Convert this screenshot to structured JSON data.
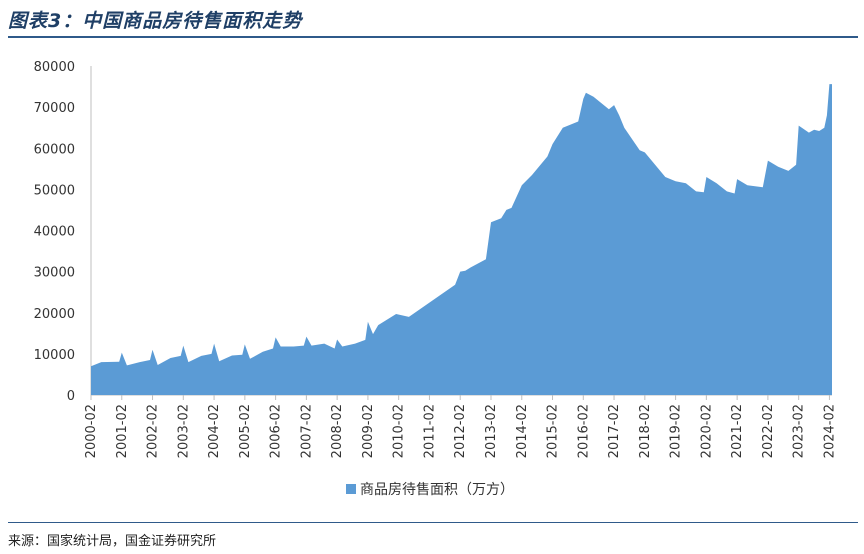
{
  "header": {
    "title": "图表3：中国商品房待售面积走势"
  },
  "footer": {
    "source": "来源：国家统计局，国金证券研究所"
  },
  "chart_data": {
    "type": "area",
    "color": "#5b9bd5",
    "series_name": "商品房待售面积（万方）",
    "legend_position": "bottom",
    "ylim": [
      0,
      80000
    ],
    "yticks": [
      0,
      10000,
      20000,
      30000,
      40000,
      50000,
      60000,
      70000,
      80000
    ],
    "xlim": [
      "2000-02",
      "2024-03"
    ],
    "xticks": [
      "2000-02",
      "2001-02",
      "2002-02",
      "2003-02",
      "2004-02",
      "2005-02",
      "2006-02",
      "2007-02",
      "2008-02",
      "2009-02",
      "2010-02",
      "2011-02",
      "2012-02",
      "2013-02",
      "2014-02",
      "2015-02",
      "2016-02",
      "2017-02",
      "2018-02",
      "2019-02",
      "2020-02",
      "2021-02",
      "2022-02",
      "2023-02",
      "2024-02"
    ],
    "points": [
      [
        "2000-02",
        7000
      ],
      [
        "2000-06",
        8000
      ],
      [
        "2001-01",
        8100
      ],
      [
        "2001-02",
        10300
      ],
      [
        "2001-04",
        7200
      ],
      [
        "2001-09",
        8000
      ],
      [
        "2002-01",
        8500
      ],
      [
        "2002-02",
        11000
      ],
      [
        "2002-04",
        7300
      ],
      [
        "2002-09",
        9000
      ],
      [
        "2003-01",
        9500
      ],
      [
        "2003-02",
        12000
      ],
      [
        "2003-04",
        8000
      ],
      [
        "2003-09",
        9500
      ],
      [
        "2004-01",
        10000
      ],
      [
        "2004-02",
        12500
      ],
      [
        "2004-04",
        8200
      ],
      [
        "2004-09",
        9600
      ],
      [
        "2005-01",
        9800
      ],
      [
        "2005-02",
        12300
      ],
      [
        "2005-04",
        8800
      ],
      [
        "2005-09",
        10500
      ],
      [
        "2006-01",
        11300
      ],
      [
        "2006-02",
        14000
      ],
      [
        "2006-04",
        11800
      ],
      [
        "2006-09",
        11800
      ],
      [
        "2007-01",
        12000
      ],
      [
        "2007-02",
        14200
      ],
      [
        "2007-04",
        12000
      ],
      [
        "2007-09",
        12500
      ],
      [
        "2008-01",
        11300
      ],
      [
        "2008-02",
        13500
      ],
      [
        "2008-04",
        11800
      ],
      [
        "2008-09",
        12500
      ],
      [
        "2009-01",
        13400
      ],
      [
        "2009-02",
        17800
      ],
      [
        "2009-04",
        14800
      ],
      [
        "2009-06",
        17000
      ],
      [
        "2010-01",
        19700
      ],
      [
        "2010-06",
        19000
      ],
      [
        "2011-12",
        26800
      ],
      [
        "2012-02",
        30000
      ],
      [
        "2012-04",
        30200
      ],
      [
        "2012-06",
        31000
      ],
      [
        "2012-12",
        33000
      ],
      [
        "2013-02",
        42000
      ],
      [
        "2013-06",
        43000
      ],
      [
        "2013-08",
        45000
      ],
      [
        "2013-10",
        45500
      ],
      [
        "2014-02",
        51000
      ],
      [
        "2014-06",
        53500
      ],
      [
        "2014-12",
        58000
      ],
      [
        "2015-02",
        61000
      ],
      [
        "2015-06",
        65000
      ],
      [
        "2015-12",
        66500
      ],
      [
        "2016-02",
        72000
      ],
      [
        "2016-03",
        73500
      ],
      [
        "2016-06",
        72500
      ],
      [
        "2016-09",
        71000
      ],
      [
        "2016-12",
        69500
      ],
      [
        "2017-02",
        70500
      ],
      [
        "2017-04",
        68000
      ],
      [
        "2017-06",
        65000
      ],
      [
        "2017-12",
        59500
      ],
      [
        "2018-02",
        59000
      ],
      [
        "2018-06",
        56000
      ],
      [
        "2018-10",
        53000
      ],
      [
        "2019-02",
        52000
      ],
      [
        "2019-06",
        51500
      ],
      [
        "2019-10",
        49500
      ],
      [
        "2020-01",
        49300
      ],
      [
        "2020-02",
        53000
      ],
      [
        "2020-06",
        51500
      ],
      [
        "2020-10",
        49500
      ],
      [
        "2021-01",
        49000
      ],
      [
        "2021-02",
        52500
      ],
      [
        "2021-06",
        51000
      ],
      [
        "2021-12",
        50500
      ],
      [
        "2022-02",
        57000
      ],
      [
        "2022-06",
        55500
      ],
      [
        "2022-10",
        54500
      ],
      [
        "2023-01",
        56000
      ],
      [
        "2023-02",
        65500
      ],
      [
        "2023-06",
        63800
      ],
      [
        "2023-08",
        64500
      ],
      [
        "2023-10",
        64200
      ],
      [
        "2023-12",
        65000
      ],
      [
        "2024-01",
        68000
      ],
      [
        "2024-02",
        75600
      ],
      [
        "2024-03",
        75600
      ]
    ]
  }
}
